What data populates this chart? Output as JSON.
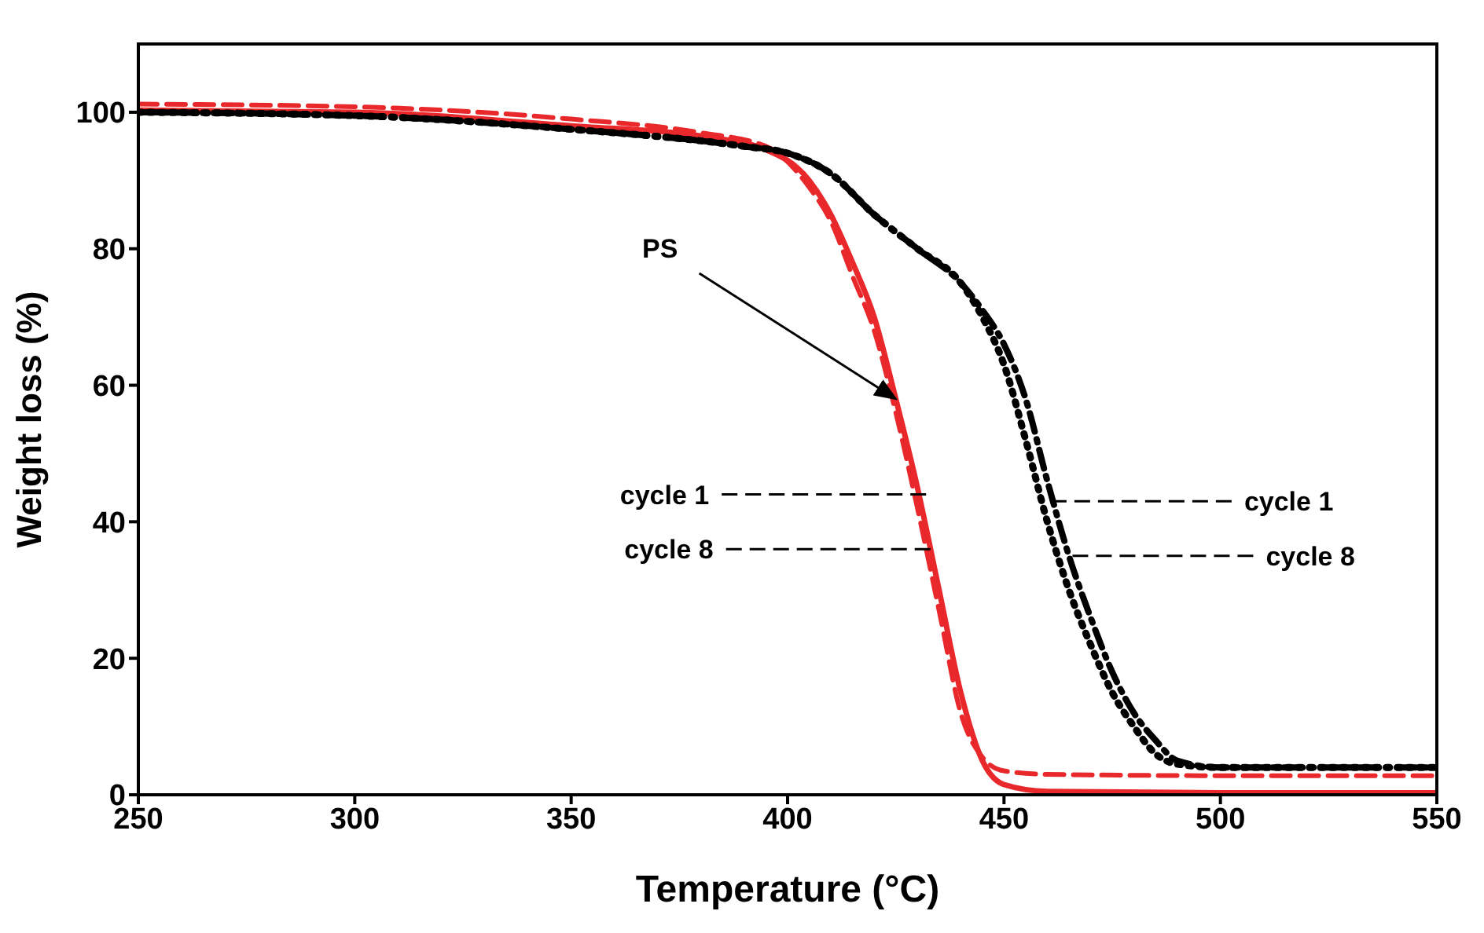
{
  "chart_data": {
    "type": "line",
    "xlabel": "Temperature (°C)",
    "ylabel": "Weight loss (%)",
    "xlim": [
      250,
      550
    ],
    "xticks": [
      250,
      300,
      350,
      400,
      450,
      500,
      550
    ],
    "ylim": [
      0,
      110
    ],
    "yticks": [
      0,
      20,
      40,
      60,
      80,
      100
    ],
    "marker": "none",
    "series": [
      {
        "color": "#e8282b",
        "line_style": "solid",
        "x": [
          250,
          300,
          350,
          380,
          395,
          405,
          410,
          415,
          420,
          425,
          430,
          435,
          440,
          445,
          450,
          460,
          500,
          550
        ],
        "values": [
          100.3,
          100,
          98,
          96.5,
          94.5,
          90,
          85,
          78,
          70,
          58,
          45,
          30,
          15,
          5,
          1.5,
          0.5,
          0.3,
          0.3
        ]
      },
      {
        "color": "#e8282b",
        "line_style": "dashed",
        "x": [
          250,
          300,
          350,
          380,
          395,
          405,
          410,
          415,
          420,
          425,
          430,
          435,
          440,
          445,
          450,
          460,
          500,
          550
        ],
        "values": [
          101.2,
          100.8,
          99,
          97,
          95,
          89,
          84,
          76,
          68,
          56,
          42,
          27,
          12,
          5.5,
          3.5,
          3,
          2.8,
          2.8
        ]
      },
      {
        "color": "#000000",
        "line_style": "dotted",
        "x": [
          250,
          300,
          350,
          390,
          400,
          410,
          420,
          430,
          440,
          445,
          450,
          455,
          460,
          465,
          470,
          475,
          480,
          485,
          490,
          500,
          550
        ],
        "values": [
          100,
          99.5,
          97.5,
          95,
          94,
          91,
          85,
          80,
          75,
          70,
          63,
          52,
          40,
          30,
          22,
          15,
          10,
          6,
          4.5,
          4,
          4
        ]
      },
      {
        "color": "#000000",
        "line_style": "dashdot",
        "x": [
          250,
          300,
          350,
          390,
          400,
          410,
          420,
          430,
          440,
          445,
          450,
          455,
          460,
          465,
          470,
          475,
          480,
          485,
          490,
          500,
          550
        ],
        "values": [
          100,
          99.5,
          97.5,
          95,
          94,
          91,
          85,
          80,
          75,
          71,
          66,
          58,
          46,
          35,
          26,
          18,
          12,
          8,
          5,
          4,
          4
        ]
      }
    ],
    "annotations": [
      {
        "text": "PS",
        "x": 425,
        "y": 58
      },
      {
        "text": "cycle 1",
        "x": 432,
        "y": 44
      },
      {
        "text": "cycle 8",
        "x": 433,
        "y": 36
      },
      {
        "text": "cycle 1",
        "x": 459,
        "y": 43
      },
      {
        "text": "cycle 8",
        "x": 464,
        "y": 35
      }
    ]
  }
}
